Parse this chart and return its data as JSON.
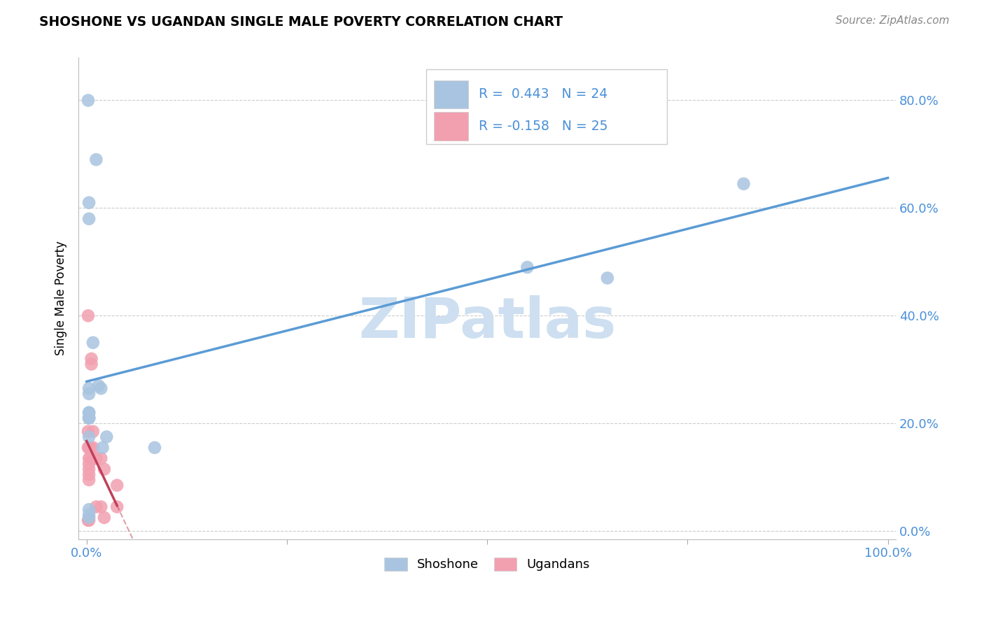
{
  "title": "SHOSHONE VS UGANDAN SINGLE MALE POVERTY CORRELATION CHART",
  "source": "Source: ZipAtlas.com",
  "ylabel": "Single Male Poverty",
  "shoshone_color": "#a8c4e0",
  "ugandan_color": "#f2a0b0",
  "shoshone_line_color": "#5b9bd5",
  "ugandan_line_color": "#c0405a",
  "R_shoshone": 0.443,
  "N_shoshone": 24,
  "R_ugandan": -0.158,
  "N_ugandan": 25,
  "shoshone_x": [
    0.002,
    0.012,
    0.003,
    0.003,
    0.008,
    0.015,
    0.003,
    0.003,
    0.003,
    0.003,
    0.003,
    0.003,
    0.55,
    0.65,
    0.003,
    0.82,
    0.025,
    0.018,
    0.02,
    0.003,
    0.085,
    0.003,
    0.003,
    0.003
  ],
  "shoshone_y": [
    0.8,
    0.69,
    0.61,
    0.58,
    0.35,
    0.27,
    0.265,
    0.255,
    0.21,
    0.21,
    0.22,
    0.22,
    0.49,
    0.47,
    0.03,
    0.645,
    0.175,
    0.265,
    0.155,
    0.04,
    0.155,
    0.175,
    0.21,
    0.025
  ],
  "ugandan_x": [
    0.002,
    0.002,
    0.002,
    0.002,
    0.003,
    0.003,
    0.003,
    0.003,
    0.003,
    0.003,
    0.003,
    0.005,
    0.005,
    0.006,
    0.006,
    0.008,
    0.008,
    0.012,
    0.012,
    0.018,
    0.018,
    0.022,
    0.022,
    0.038,
    0.038
  ],
  "ugandan_y": [
    0.4,
    0.185,
    0.155,
    0.02,
    0.155,
    0.135,
    0.125,
    0.115,
    0.105,
    0.095,
    0.02,
    0.155,
    0.135,
    0.32,
    0.31,
    0.185,
    0.155,
    0.135,
    0.045,
    0.135,
    0.045,
    0.115,
    0.025,
    0.085,
    0.045
  ],
  "background_color": "#ffffff",
  "watermark_color": "#cddff0",
  "xlim": [
    -0.01,
    1.01
  ],
  "ylim": [
    -0.015,
    0.88
  ],
  "ytick_vals": [
    0.0,
    0.2,
    0.4,
    0.6,
    0.8
  ],
  "ytick_labels": [
    "0.0%",
    "20.0%",
    "40.0%",
    "60.0%",
    "80.0%"
  ],
  "xtick_vals": [
    0.0,
    0.25,
    0.5,
    0.75,
    1.0
  ],
  "xtick_labels": [
    "0.0%",
    "",
    "",
    "",
    "100.0%"
  ]
}
